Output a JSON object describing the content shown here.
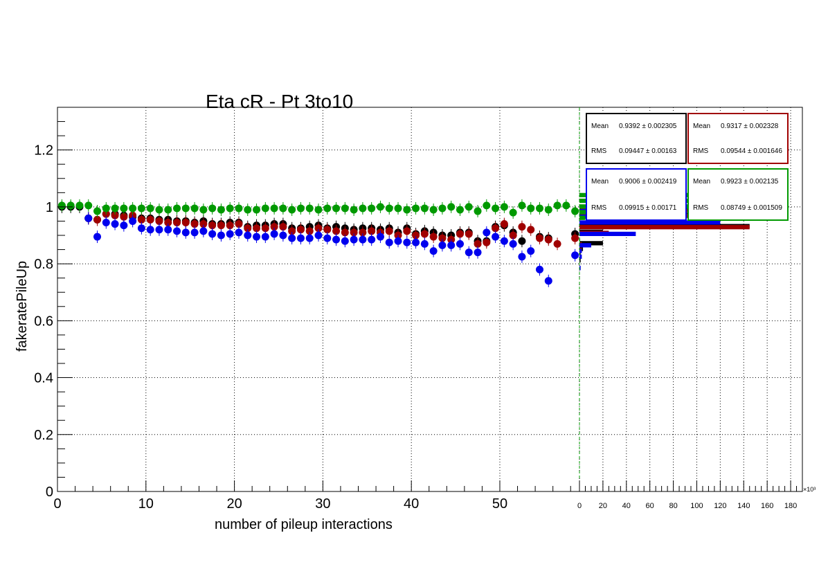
{
  "chart_data": {
    "type": "scatter",
    "title": "Eta cR - Pt 3to10",
    "xlabel": "number of pileup interactions",
    "ylabel": "fakeratePileUp",
    "xlim": [
      0,
      59
    ],
    "ylim": [
      0,
      1.35
    ],
    "xticks": [
      "0",
      "10",
      "20",
      "30",
      "40",
      "50"
    ],
    "yticks": [
      "0",
      "0.2",
      "0.4",
      "0.6",
      "0.8",
      "1",
      "1.2"
    ],
    "grid": true,
    "series": [
      {
        "color": "#000000",
        "points": [
          [
            0.5,
            1.0
          ],
          [
            1.5,
            1.0
          ],
          [
            2.5,
            1.0
          ],
          [
            3.5,
            0.96
          ],
          [
            4.5,
            0.955
          ],
          [
            5.5,
            0.975
          ],
          [
            6.5,
            0.975
          ],
          [
            7.5,
            0.97
          ],
          [
            8.5,
            0.965
          ],
          [
            9.5,
            0.96
          ],
          [
            10.5,
            0.96
          ],
          [
            11.5,
            0.955
          ],
          [
            12.5,
            0.955
          ],
          [
            13.5,
            0.95
          ],
          [
            14.5,
            0.95
          ],
          [
            15.5,
            0.945
          ],
          [
            16.5,
            0.95
          ],
          [
            17.5,
            0.94
          ],
          [
            18.5,
            0.94
          ],
          [
            19.5,
            0.945
          ],
          [
            20.5,
            0.945
          ],
          [
            21.5,
            0.93
          ],
          [
            22.5,
            0.935
          ],
          [
            23.5,
            0.935
          ],
          [
            24.5,
            0.94
          ],
          [
            25.5,
            0.94
          ],
          [
            26.5,
            0.925
          ],
          [
            27.5,
            0.925
          ],
          [
            28.5,
            0.93
          ],
          [
            29.5,
            0.935
          ],
          [
            30.5,
            0.925
          ],
          [
            31.5,
            0.93
          ],
          [
            32.5,
            0.925
          ],
          [
            33.5,
            0.92
          ],
          [
            34.5,
            0.925
          ],
          [
            35.5,
            0.925
          ],
          [
            36.5,
            0.92
          ],
          [
            37.5,
            0.925
          ],
          [
            38.5,
            0.91
          ],
          [
            39.5,
            0.925
          ],
          [
            40.5,
            0.905
          ],
          [
            41.5,
            0.915
          ],
          [
            42.5,
            0.91
          ],
          [
            43.5,
            0.9
          ],
          [
            44.5,
            0.9
          ],
          [
            45.5,
            0.91
          ],
          [
            46.5,
            0.91
          ],
          [
            47.5,
            0.88
          ],
          [
            48.5,
            0.88
          ],
          [
            49.5,
            0.93
          ],
          [
            50.5,
            0.935
          ],
          [
            51.5,
            0.91
          ],
          [
            52.5,
            0.88
          ],
          [
            54.5,
            0.895
          ],
          [
            55.5,
            0.89
          ],
          [
            58.5,
            0.905
          ]
        ]
      },
      {
        "color": "#a00000",
        "points": [
          [
            3.5,
            0.96
          ],
          [
            4.5,
            0.955
          ],
          [
            5.5,
            0.975
          ],
          [
            6.5,
            0.97
          ],
          [
            7.5,
            0.965
          ],
          [
            8.5,
            0.97
          ],
          [
            9.5,
            0.955
          ],
          [
            10.5,
            0.955
          ],
          [
            11.5,
            0.95
          ],
          [
            12.5,
            0.945
          ],
          [
            13.5,
            0.945
          ],
          [
            14.5,
            0.945
          ],
          [
            15.5,
            0.94
          ],
          [
            16.5,
            0.94
          ],
          [
            17.5,
            0.935
          ],
          [
            18.5,
            0.935
          ],
          [
            19.5,
            0.935
          ],
          [
            20.5,
            0.94
          ],
          [
            21.5,
            0.925
          ],
          [
            22.5,
            0.925
          ],
          [
            23.5,
            0.925
          ],
          [
            24.5,
            0.93
          ],
          [
            25.5,
            0.93
          ],
          [
            26.5,
            0.915
          ],
          [
            27.5,
            0.92
          ],
          [
            28.5,
            0.915
          ],
          [
            29.5,
            0.925
          ],
          [
            30.5,
            0.92
          ],
          [
            31.5,
            0.915
          ],
          [
            32.5,
            0.91
          ],
          [
            33.5,
            0.91
          ],
          [
            34.5,
            0.91
          ],
          [
            35.5,
            0.915
          ],
          [
            36.5,
            0.91
          ],
          [
            37.5,
            0.915
          ],
          [
            38.5,
            0.9
          ],
          [
            39.5,
            0.915
          ],
          [
            40.5,
            0.9
          ],
          [
            41.5,
            0.905
          ],
          [
            42.5,
            0.895
          ],
          [
            43.5,
            0.89
          ],
          [
            44.5,
            0.885
          ],
          [
            45.5,
            0.905
          ],
          [
            46.5,
            0.905
          ],
          [
            47.5,
            0.87
          ],
          [
            48.5,
            0.875
          ],
          [
            49.5,
            0.925
          ],
          [
            50.5,
            0.94
          ],
          [
            51.5,
            0.9
          ],
          [
            52.5,
            0.93
          ],
          [
            53.5,
            0.92
          ],
          [
            54.5,
            0.89
          ],
          [
            55.5,
            0.885
          ],
          [
            56.5,
            0.87
          ],
          [
            58.5,
            0.89
          ]
        ]
      },
      {
        "color": "#0000ee",
        "points": [
          [
            3.5,
            0.96
          ],
          [
            4.5,
            0.895
          ],
          [
            5.5,
            0.945
          ],
          [
            6.5,
            0.94
          ],
          [
            7.5,
            0.935
          ],
          [
            8.5,
            0.95
          ],
          [
            9.5,
            0.925
          ],
          [
            10.5,
            0.92
          ],
          [
            11.5,
            0.92
          ],
          [
            12.5,
            0.92
          ],
          [
            13.5,
            0.915
          ],
          [
            14.5,
            0.91
          ],
          [
            15.5,
            0.91
          ],
          [
            16.5,
            0.915
          ],
          [
            17.5,
            0.905
          ],
          [
            18.5,
            0.9
          ],
          [
            19.5,
            0.905
          ],
          [
            20.5,
            0.91
          ],
          [
            21.5,
            0.9
          ],
          [
            22.5,
            0.895
          ],
          [
            23.5,
            0.895
          ],
          [
            24.5,
            0.905
          ],
          [
            25.5,
            0.9
          ],
          [
            26.5,
            0.89
          ],
          [
            27.5,
            0.89
          ],
          [
            28.5,
            0.89
          ],
          [
            29.5,
            0.9
          ],
          [
            30.5,
            0.89
          ],
          [
            31.5,
            0.885
          ],
          [
            32.5,
            0.88
          ],
          [
            33.5,
            0.885
          ],
          [
            34.5,
            0.885
          ],
          [
            35.5,
            0.885
          ],
          [
            36.5,
            0.895
          ],
          [
            37.5,
            0.875
          ],
          [
            38.5,
            0.88
          ],
          [
            39.5,
            0.875
          ],
          [
            40.5,
            0.875
          ],
          [
            41.5,
            0.87
          ],
          [
            42.5,
            0.845
          ],
          [
            43.5,
            0.865
          ],
          [
            44.5,
            0.865
          ],
          [
            45.5,
            0.87
          ],
          [
            46.5,
            0.84
          ],
          [
            47.5,
            0.84
          ],
          [
            48.5,
            0.91
          ],
          [
            49.5,
            0.895
          ],
          [
            50.5,
            0.88
          ],
          [
            51.5,
            0.87
          ],
          [
            52.5,
            0.825
          ],
          [
            53.5,
            0.845
          ],
          [
            54.5,
            0.78
          ],
          [
            55.5,
            0.74
          ],
          [
            58.5,
            0.83
          ]
        ]
      },
      {
        "color": "#009900",
        "points": [
          [
            0.5,
            1.005
          ],
          [
            1.5,
            1.005
          ],
          [
            2.5,
            1.005
          ],
          [
            3.5,
            1.005
          ],
          [
            4.5,
            0.985
          ],
          [
            5.5,
            0.995
          ],
          [
            6.5,
            0.995
          ],
          [
            7.5,
            0.995
          ],
          [
            8.5,
            0.995
          ],
          [
            9.5,
            0.995
          ],
          [
            10.5,
            0.995
          ],
          [
            11.5,
            0.99
          ],
          [
            12.5,
            0.99
          ],
          [
            13.5,
            0.995
          ],
          [
            14.5,
            0.995
          ],
          [
            15.5,
            0.995
          ],
          [
            16.5,
            0.99
          ],
          [
            17.5,
            0.995
          ],
          [
            18.5,
            0.99
          ],
          [
            19.5,
            0.995
          ],
          [
            20.5,
            0.995
          ],
          [
            21.5,
            0.99
          ],
          [
            22.5,
            0.99
          ],
          [
            23.5,
            0.995
          ],
          [
            24.5,
            0.995
          ],
          [
            25.5,
            0.995
          ],
          [
            26.5,
            0.99
          ],
          [
            27.5,
            0.995
          ],
          [
            28.5,
            0.995
          ],
          [
            29.5,
            0.99
          ],
          [
            30.5,
            0.995
          ],
          [
            31.5,
            0.995
          ],
          [
            32.5,
            0.995
          ],
          [
            33.5,
            0.99
          ],
          [
            34.5,
            0.995
          ],
          [
            35.5,
            0.995
          ],
          [
            36.5,
            1.0
          ],
          [
            37.5,
            0.995
          ],
          [
            38.5,
            0.995
          ],
          [
            39.5,
            0.99
          ],
          [
            40.5,
            0.995
          ],
          [
            41.5,
            0.995
          ],
          [
            42.5,
            0.99
          ],
          [
            43.5,
            0.995
          ],
          [
            44.5,
            1.0
          ],
          [
            45.5,
            0.99
          ],
          [
            46.5,
            1.0
          ],
          [
            47.5,
            0.985
          ],
          [
            48.5,
            1.005
          ],
          [
            49.5,
            0.995
          ],
          [
            50.5,
            1.0
          ],
          [
            51.5,
            0.98
          ],
          [
            52.5,
            1.005
          ],
          [
            53.5,
            0.995
          ],
          [
            54.5,
            0.995
          ],
          [
            55.5,
            0.99
          ],
          [
            56.5,
            1.005
          ],
          [
            57.5,
            1.005
          ],
          [
            58.5,
            0.985
          ]
        ]
      }
    ],
    "projection": {
      "scale_label": "×10³",
      "xticks": [
        "0",
        "20",
        "40",
        "60",
        "80",
        "100",
        "120",
        "140",
        "160",
        "180"
      ],
      "xlim": [
        0,
        190
      ],
      "bin_width": 0.02,
      "series": [
        {
          "color": "#000000",
          "bins": [
            [
              0.99,
              140
            ],
            [
              0.97,
              140
            ],
            [
              0.93,
              145
            ],
            [
              0.91,
              20
            ],
            [
              0.87,
              20
            ],
            [
              0.85,
              3
            ],
            [
              0.83,
              1
            ],
            [
              0.81,
              1
            ]
          ]
        },
        {
          "color": "#a00000",
          "bins": [
            [
              0.99,
              145
            ],
            [
              0.97,
              150
            ],
            [
              0.93,
              145
            ],
            [
              0.91,
              25
            ],
            [
              0.87,
              2
            ],
            [
              0.85,
              2
            ]
          ]
        },
        {
          "color": "#0000ee",
          "bins": [
            [
              0.99,
              70
            ],
            [
              0.97,
              70
            ],
            [
              0.95,
              120
            ],
            [
              0.91,
              48
            ],
            [
              0.87,
              10
            ],
            [
              0.85,
              2
            ],
            [
              0.83,
              2
            ],
            [
              0.79,
              1
            ]
          ]
        },
        {
          "color": "#009900",
          "bins": [
            [
              1.05,
              175
            ],
            [
              1.03,
              160
            ],
            [
              1.01,
              110
            ],
            [
              0.99,
              18
            ],
            [
              0.97,
              5
            ],
            [
              0.89,
              0.5
            ]
          ]
        }
      ]
    }
  },
  "stats": [
    {
      "color": "#000000",
      "mean_label": "Mean",
      "mean_value": "0.9392 ± 0.002305",
      "rms_label": "RMS",
      "rms_value": "0.09447 ± 0.00163"
    },
    {
      "color": "#a00000",
      "mean_label": "Mean",
      "mean_value": "0.9317 ± 0.002328",
      "rms_label": "RMS",
      "rms_value": "0.09544 ± 0.001646"
    },
    {
      "color": "#0000ee",
      "mean_label": "Mean",
      "mean_value": "0.9006 ± 0.002419",
      "rms_label": "RMS",
      "rms_value": "0.09915 ± 0.00171"
    },
    {
      "color": "#009900",
      "mean_label": "Mean",
      "mean_value": "0.9923 ± 0.002135",
      "rms_label": "RMS",
      "rms_value": "0.08749 ± 0.001509"
    }
  ]
}
